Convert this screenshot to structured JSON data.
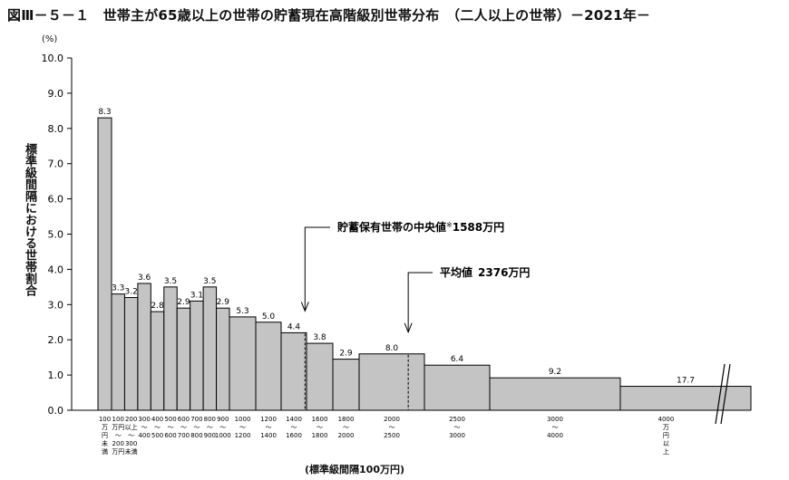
{
  "title": "図Ⅲ－５－１　世帯主が65歳以上の世帯の貯蓄現在高階級別世帯分布　（二人以上の世帯）－2021年－",
  "chart_data": {
    "type": "bar",
    "ylabel": "標準級間隔における世帯割合",
    "yunit": "(%)",
    "xlabel": "(標準級間隔100万円)",
    "ylim": [
      0,
      10
    ],
    "yticks": [
      "0.0",
      "1.0",
      "2.0",
      "3.0",
      "4.0",
      "5.0",
      "6.0",
      "7.0",
      "8.0",
      "9.0",
      "10.0"
    ],
    "grid": false,
    "bars": [
      {
        "from": 0,
        "to": 100,
        "value": 8.3,
        "label": "8.3"
      },
      {
        "from": 100,
        "to": 200,
        "value": 3.3,
        "label": "3.3"
      },
      {
        "from": 200,
        "to": 300,
        "value": 3.2,
        "label": "3.2"
      },
      {
        "from": 300,
        "to": 400,
        "value": 3.6,
        "label": "3.6"
      },
      {
        "from": 400,
        "to": 500,
        "value": 2.8,
        "label": "2.8"
      },
      {
        "from": 500,
        "to": 600,
        "value": 3.5,
        "label": "3.5"
      },
      {
        "from": 600,
        "to": 700,
        "value": 2.9,
        "label": "2.9"
      },
      {
        "from": 700,
        "to": 800,
        "value": 3.1,
        "label": "3.1"
      },
      {
        "from": 800,
        "to": 900,
        "value": 3.5,
        "label": "3.5"
      },
      {
        "from": 900,
        "to": 1000,
        "value": 2.9,
        "label": "2.9"
      },
      {
        "from": 1000,
        "to": 1200,
        "value": 2.65,
        "label": "5.3"
      },
      {
        "from": 1200,
        "to": 1400,
        "value": 2.5,
        "label": "5.0"
      },
      {
        "from": 1400,
        "to": 1600,
        "value": 2.2,
        "label": "4.4"
      },
      {
        "from": 1600,
        "to": 1800,
        "value": 1.9,
        "label": "3.8"
      },
      {
        "from": 1800,
        "to": 2000,
        "value": 1.45,
        "label": "2.9"
      },
      {
        "from": 2000,
        "to": 2500,
        "value": 1.6,
        "label": "8.0"
      },
      {
        "from": 2500,
        "to": 3000,
        "value": 1.28,
        "label": "6.4"
      },
      {
        "from": 3000,
        "to": 4000,
        "value": 0.92,
        "label": "9.2"
      },
      {
        "from": 4000,
        "to": 5000,
        "value": 0.68,
        "label": "17.7",
        "open": true
      }
    ],
    "tick_labels": [
      {
        "at": 50,
        "lines": [
          "100",
          "万",
          "円",
          "未",
          "満"
        ]
      },
      {
        "at": 150,
        "lines": [
          "100",
          "万円",
          "～",
          "200",
          "万円"
        ]
      },
      {
        "at": 250,
        "lines": [
          "200",
          "以上",
          "～",
          "300",
          "未満"
        ]
      },
      {
        "at": 350,
        "lines": [
          "300",
          "～",
          "400"
        ]
      },
      {
        "at": 450,
        "lines": [
          "400",
          "～",
          "500"
        ]
      },
      {
        "at": 550,
        "lines": [
          "500",
          "～",
          "600"
        ]
      },
      {
        "at": 650,
        "lines": [
          "600",
          "～",
          "700"
        ]
      },
      {
        "at": 750,
        "lines": [
          "700",
          "～",
          "800"
        ]
      },
      {
        "at": 850,
        "lines": [
          "800",
          "～",
          "900"
        ]
      },
      {
        "at": 950,
        "lines": [
          "900",
          "～",
          "1000"
        ]
      },
      {
        "at": 1100,
        "lines": [
          "1000",
          "～",
          "1200"
        ]
      },
      {
        "at": 1300,
        "lines": [
          "1200",
          "～",
          "1400"
        ]
      },
      {
        "at": 1500,
        "lines": [
          "1400",
          "～",
          "1600"
        ]
      },
      {
        "at": 1700,
        "lines": [
          "1600",
          "～",
          "1800"
        ]
      },
      {
        "at": 1900,
        "lines": [
          "1800",
          "～",
          "2000"
        ]
      },
      {
        "at": 2250,
        "lines": [
          "2000",
          "～",
          "2500"
        ]
      },
      {
        "at": 2750,
        "lines": [
          "2500",
          "～",
          "3000"
        ]
      },
      {
        "at": 3500,
        "lines": [
          "3000",
          "～",
          "4000"
        ]
      },
      {
        "at": 4350,
        "lines": [
          "4000",
          "万",
          "円",
          "以",
          "上"
        ]
      }
    ],
    "annotations": [
      {
        "name": "median",
        "label": "貯蓄保有世帯の中央値",
        "sup": "※",
        "value_text": "1588万円",
        "x": 1588
      },
      {
        "name": "mean",
        "label": "平均値",
        "value_text": "2376万円",
        "x": 2376
      }
    ]
  }
}
